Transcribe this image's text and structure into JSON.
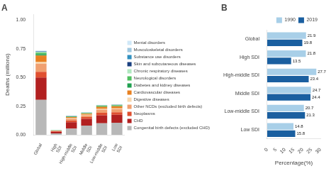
{
  "chart_data": [
    {
      "type": "bar",
      "title": "A",
      "stacked": true,
      "categories": [
        "Global",
        "High\nSDI",
        "High-middle\nSDI",
        "Middle\nSDi",
        "Low-middle\nSDI",
        "Low\nSDI"
      ],
      "ylabel": "Deaths (millions)",
      "ylim": [
        0,
        1.05
      ],
      "yticks": [
        {
          "value": 0,
          "label": "0.00"
        },
        0.25,
        {
          "value": 0.5,
          "label": "0.50"
        },
        0.75,
        {
          "value": 1,
          "label": "1.00"
        }
      ],
      "grid": false,
      "legend": "right",
      "series": [
        {
          "name": "Congenital birth defects (excluded CHD)",
          "color": "#b8b8b8",
          "values": [
            0.305,
            0.012,
            0.055,
            0.08,
            0.1,
            0.105
          ]
        },
        {
          "name": "CHD",
          "color": "#b22020",
          "values": [
            0.195,
            0.015,
            0.055,
            0.06,
            0.07,
            0.07
          ]
        },
        {
          "name": "Neoplasms",
          "color": "#e05030",
          "values": [
            0.05,
            0.005,
            0.015,
            0.015,
            0.022,
            0.022
          ]
        },
        {
          "name": "Other NCDs (excluded birth defects)",
          "color": "#f0a070",
          "values": [
            0.07,
            0.004,
            0.016,
            0.016,
            0.028,
            0.028
          ]
        },
        {
          "name": "Digestive diseases",
          "color": "#f8d8b0",
          "values": [
            0.014,
            0.001,
            0.004,
            0.004,
            0.006,
            0.006
          ]
        },
        {
          "name": "Cardiovascular diseases",
          "color": "#e88020",
          "values": [
            0.058,
            0.001,
            0.01,
            0.01,
            0.018,
            0.018
          ]
        },
        {
          "name": "Diabetes and kidney diseases",
          "color": "#20a050",
          "values": [
            0.01,
            0.001,
            0.003,
            0.003,
            0.004,
            0.004
          ]
        },
        {
          "name": "Neurological disorders",
          "color": "#50c060",
          "values": [
            0.014,
            0.001,
            0.003,
            0.003,
            0.006,
            0.006
          ]
        },
        {
          "name": "Chronic respiratory diseases",
          "color": "#b0e8c0",
          "values": [
            0.007,
            0.001,
            0.002,
            0.002,
            0.003,
            0.003
          ]
        },
        {
          "name": "Skin and subcutaneous diseases",
          "color": "#1a4080",
          "values": [
            0.003,
            0.0,
            0.001,
            0.001,
            0.001,
            0.001
          ]
        },
        {
          "name": "Substance use disorders",
          "color": "#3090c0",
          "values": [
            0.003,
            0.0,
            0.001,
            0.001,
            0.001,
            0.001
          ]
        },
        {
          "name": "Musculoskeletal disorders",
          "color": "#a0c8e0",
          "values": [
            0.002,
            0.0,
            0.001,
            0.001,
            0.001,
            0.001
          ]
        },
        {
          "name": "Mental disorders",
          "color": "#d0e8f8",
          "values": [
            0.004,
            0.0,
            0.001,
            0.001,
            0.001,
            0.001
          ]
        }
      ]
    },
    {
      "type": "bar",
      "title": "B",
      "orientation": "horizontal",
      "categories": [
        "Global",
        "High SDI",
        "High-middle SDI",
        "Middle SDI",
        "Low-middle SDI",
        "Low SDI"
      ],
      "xlabel": "Percentage(%)",
      "xlim": [
        0,
        30
      ],
      "xticks": [
        0,
        5,
        10,
        15,
        20,
        25,
        30
      ],
      "grid": false,
      "legend": "top",
      "data_labels": true,
      "series": [
        {
          "name": "1990",
          "color": "#a8cfe8",
          "values": [
            21.9,
            21.8,
            27.7,
            24.7,
            20.7,
            14.8
          ]
        },
        {
          "name": "2019",
          "color": "#1a5fa0",
          "values": [
            19.8,
            13.5,
            23.4,
            24.4,
            21.3,
            15.8
          ]
        }
      ]
    }
  ]
}
